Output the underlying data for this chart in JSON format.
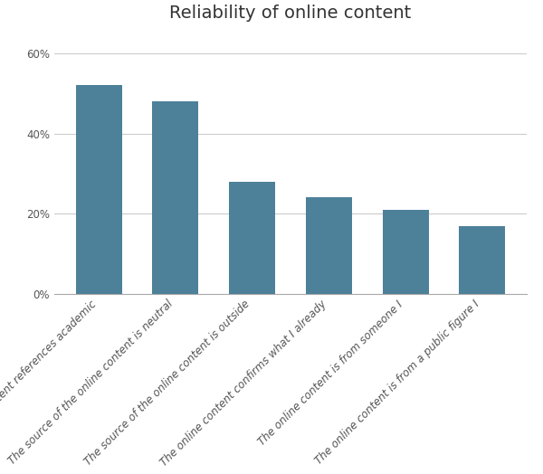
{
  "title": "Reliability of online content",
  "categories": [
    "...content references academic",
    "The source of the online content is neutral",
    "The source of the online content is outside",
    "The online content confirms what I already",
    "The online content is from someone I",
    "The online content is from a public figure I"
  ],
  "values": [
    0.52,
    0.48,
    0.28,
    0.24,
    0.21,
    0.17
  ],
  "bar_color": "#4d8099",
  "background_color": "#ffffff",
  "ylim": [
    0,
    0.65
  ],
  "yticks": [
    0.0,
    0.2,
    0.4,
    0.6
  ],
  "ytick_labels": [
    "0%",
    "20%",
    "40%",
    "60%"
  ],
  "title_fontsize": 14,
  "tick_label_fontsize": 8.5,
  "grid_color": "#cccccc"
}
